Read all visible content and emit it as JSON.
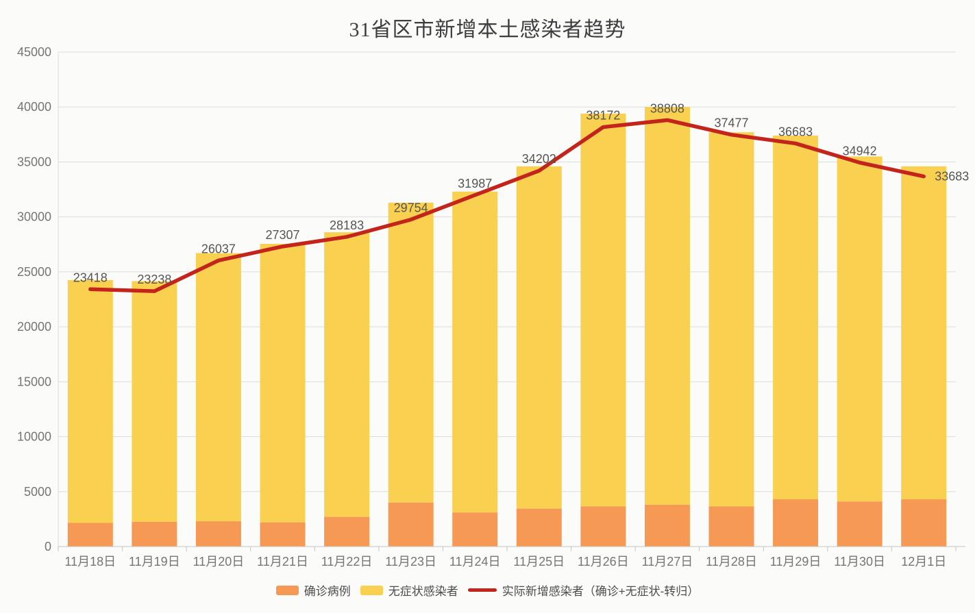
{
  "chart_data": {
    "type": "bar",
    "stacked": true,
    "title": "31省区市新增本土感染者趋势",
    "categories": [
      "11月18日",
      "11月19日",
      "11月20日",
      "11月21日",
      "11月22日",
      "11月23日",
      "11月24日",
      "11月25日",
      "11月26日",
      "11月27日",
      "11月28日",
      "11月29日",
      "11月30日",
      "12月1日"
    ],
    "series": [
      {
        "name": "确诊病例",
        "type": "bar",
        "color": "#F59955",
        "values": [
          2150,
          2250,
          2300,
          2200,
          2700,
          4000,
          3100,
          3450,
          3650,
          3800,
          3650,
          4300,
          4100,
          4300
        ]
      },
      {
        "name": "无症状感染者",
        "type": "bar",
        "color": "#FAD050",
        "values": [
          22100,
          21900,
          24400,
          25350,
          25900,
          27300,
          29200,
          31150,
          35750,
          36200,
          34050,
          33100,
          31400,
          30300
        ]
      },
      {
        "name": "实际新增感染者（确诊+无症状-转归）",
        "type": "line",
        "color": "#C3241C",
        "values": [
          23418,
          23238,
          26037,
          27307,
          28183,
          29754,
          31987,
          34202,
          38172,
          38808,
          37477,
          36683,
          34942,
          33683
        ],
        "data_labels": true
      }
    ],
    "xlabel": "",
    "ylabel": "",
    "ylim": [
      0,
      45000
    ],
    "yticks": [
      0,
      5000,
      10000,
      15000,
      20000,
      25000,
      30000,
      35000,
      40000,
      45000
    ],
    "grid": true,
    "legend_position": "bottom"
  },
  "colors": {
    "background": "#fbfbfa",
    "gridline": "#dcdcdc",
    "axis_line": "#c6c6c6",
    "axis_text": "#757575",
    "data_label_text": "#555555",
    "title_text": "#3d3d3d",
    "legend_text": "#4d4d4d"
  }
}
